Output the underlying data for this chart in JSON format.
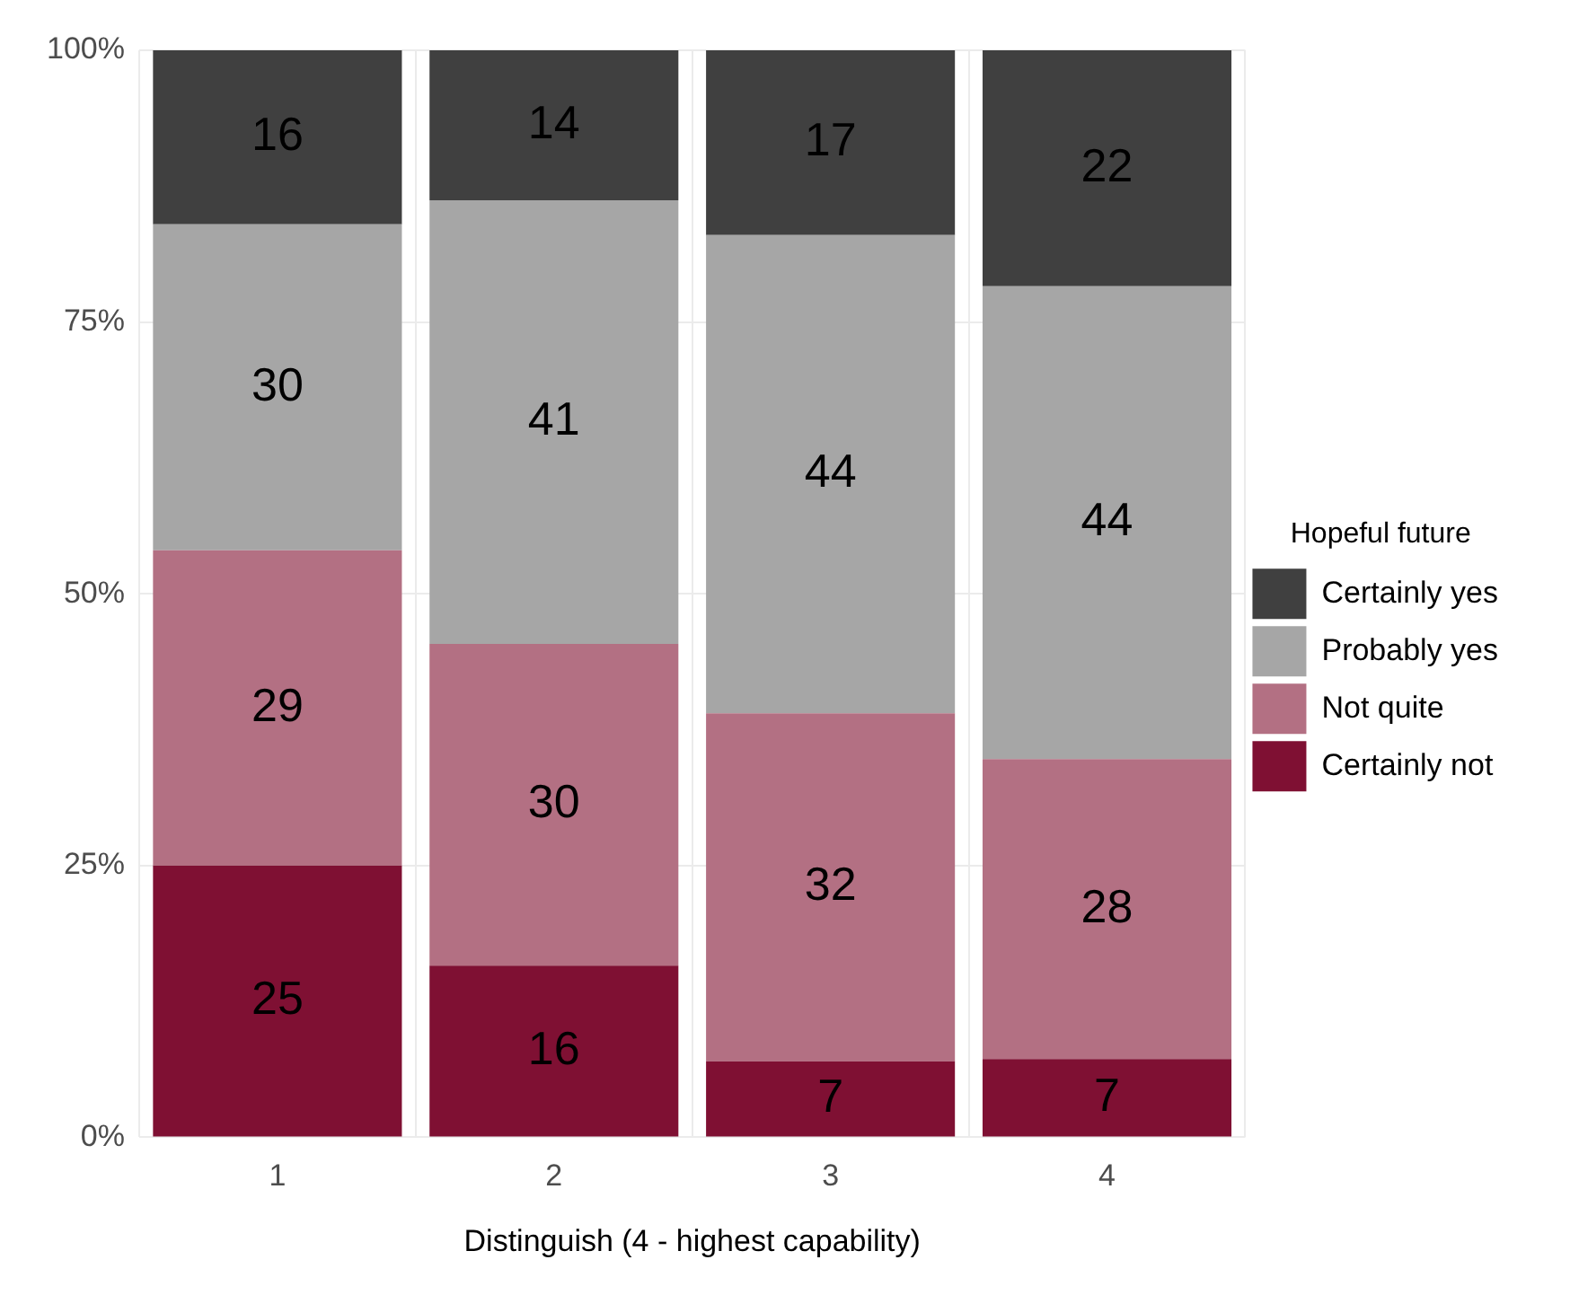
{
  "chart_data": {
    "type": "bar",
    "stacked": true,
    "xlabel": "Distinguish (4 - highest capability)",
    "legend_title": "Hopeful future",
    "legend": "right",
    "grid": true,
    "categories": [
      "1",
      "2",
      "3",
      "4"
    ],
    "ylim": [
      0,
      100
    ],
    "yticks": [
      {
        "value": 0,
        "label": "0%"
      },
      {
        "value": 25,
        "label": "25%"
      },
      {
        "value": 50,
        "label": "50%"
      },
      {
        "value": 75,
        "label": "75%"
      },
      {
        "value": 100,
        "label": "100%"
      }
    ],
    "series": [
      {
        "name": "Certainly not",
        "color": "#7f1033",
        "values": [
          25,
          15.8,
          7,
          7.2
        ],
        "value_labels": [
          "25",
          "16",
          "7",
          "7"
        ]
      },
      {
        "name": "Not quite",
        "color": "#b37083",
        "values": [
          29,
          29.6,
          32,
          27.6
        ],
        "value_labels": [
          "29",
          "30",
          "32",
          "28"
        ]
      },
      {
        "name": "Probably yes",
        "color": "#a6a6a6",
        "values": [
          30,
          40.8,
          44,
          43.5
        ],
        "value_labels": [
          "30",
          "41",
          "44",
          "44"
        ]
      },
      {
        "name": "Certainly yes",
        "color": "#404040",
        "values": [
          16,
          13.8,
          17,
          21.7
        ],
        "value_labels": [
          "16",
          "14",
          "17",
          "22"
        ]
      }
    ]
  }
}
